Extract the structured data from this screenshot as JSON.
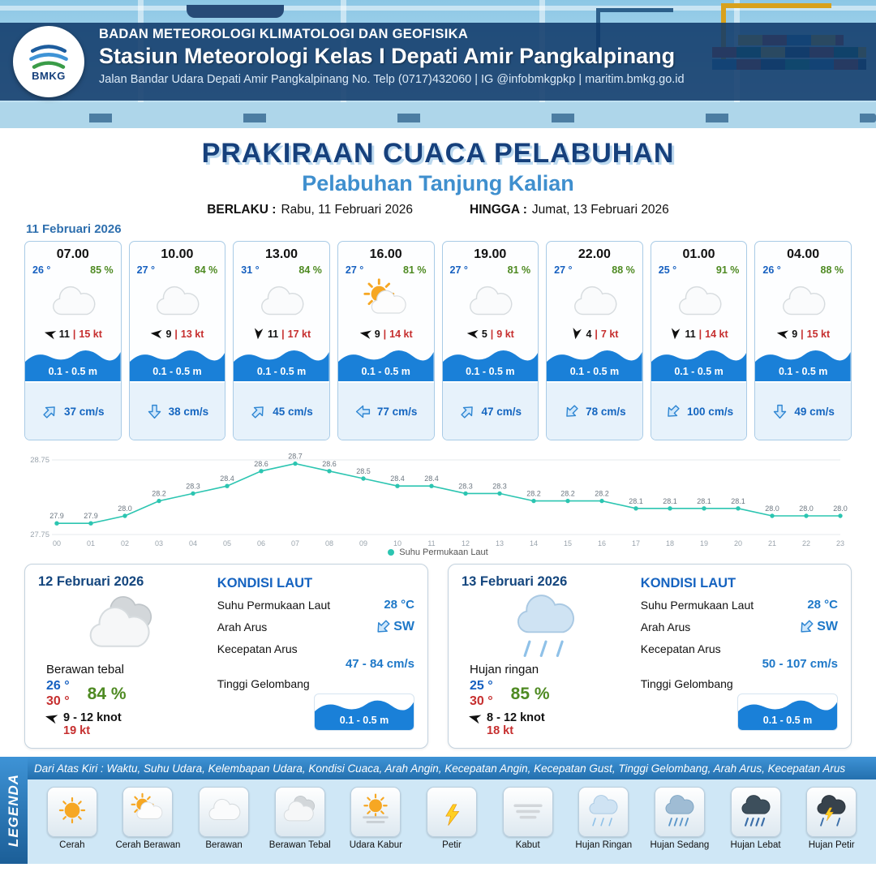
{
  "colors": {
    "navy": "#16407c",
    "sub_blue": "#3f8fce",
    "temp_blue": "#1660c0",
    "humidity_green": "#4e8a22",
    "gust_red": "#c62f2f",
    "wave_blue": "#1a80d8",
    "chart_teal": "#2cc5b1",
    "legend_blue": "#2e7fc0"
  },
  "header": {
    "logo_text": "BMKG",
    "agency": "BADAN METEOROLOGI KLIMATOLOGI DAN GEOFISIKA",
    "station": "Stasiun Meteorologi Kelas I Depati Amir Pangkalpinang",
    "address": "Jalan Bandar Udara Depati Amir Pangkalpinang No. Telp (0717)432060 | IG @infobmkgpkp | maritim.bmkg.go.id"
  },
  "title": {
    "main": "PRAKIRAAN CUACA PELABUHAN",
    "sub": "Pelabuhan Tanjung Kalian",
    "berlaku_label": "BERLAKU :",
    "berlaku_value": "Rabu, 11 Februari 2026",
    "hingga_label": "HINGGA :",
    "hingga_value": "Jumat, 13 Februari 2026"
  },
  "hourly": {
    "date": "11 Februari 2026",
    "cards": [
      {
        "time": "07.00",
        "temp": "26 °",
        "rh": "85 %",
        "icon": "berawan",
        "wind": "11",
        "gust": "15 kt",
        "wind_rot": 195,
        "wave": "0.1 - 0.5 m",
        "current": "37 cm/s",
        "current_rot": -45
      },
      {
        "time": "10.00",
        "temp": "27 °",
        "rh": "84 %",
        "icon": "berawan",
        "wind": "9",
        "gust": "13 kt",
        "wind_rot": 185,
        "wave": "0.1 - 0.5 m",
        "current": "38 cm/s",
        "current_rot": 90
      },
      {
        "time": "13.00",
        "temp": "31 °",
        "rh": "84 %",
        "icon": "berawan",
        "wind": "11",
        "gust": "17 kt",
        "wind_rot": 95,
        "wave": "0.1 - 0.5 m",
        "current": "45 cm/s",
        "current_rot": -45
      },
      {
        "time": "16.00",
        "temp": "27 °",
        "rh": "81 %",
        "icon": "cerah-berawan",
        "wind": "9",
        "gust": "14 kt",
        "wind_rot": 190,
        "wave": "0.1 - 0.5 m",
        "current": "77 cm/s",
        "current_rot": 180
      },
      {
        "time": "19.00",
        "temp": "27 °",
        "rh": "81 %",
        "icon": "berawan",
        "wind": "5",
        "gust": "9 kt",
        "wind_rot": 185,
        "wave": "0.1 - 0.5 m",
        "current": "47 cm/s",
        "current_rot": -45
      },
      {
        "time": "22.00",
        "temp": "27 °",
        "rh": "88 %",
        "icon": "berawan",
        "wind": "4",
        "gust": "7 kt",
        "wind_rot": 100,
        "wave": "0.1 - 0.5 m",
        "current": "78 cm/s",
        "current_rot": 135
      },
      {
        "time": "01.00",
        "temp": "25 °",
        "rh": "91 %",
        "icon": "berawan",
        "wind": "11",
        "gust": "14 kt",
        "wind_rot": 95,
        "wave": "0.1 - 0.5 m",
        "current": "100 cm/s",
        "current_rot": 135
      },
      {
        "time": "04.00",
        "temp": "26 °",
        "rh": "88 %",
        "icon": "berawan",
        "wind": "9",
        "gust": "15 kt",
        "wind_rot": 190,
        "wave": "0.1 - 0.5 m",
        "current": "49 cm/s",
        "current_rot": 90
      }
    ]
  },
  "chart_data": {
    "type": "line",
    "x": [
      "00",
      "01",
      "02",
      "03",
      "04",
      "05",
      "06",
      "07",
      "08",
      "09",
      "10",
      "11",
      "12",
      "13",
      "14",
      "15",
      "16",
      "17",
      "18",
      "19",
      "20",
      "21",
      "22",
      "23"
    ],
    "series": [
      {
        "name": "Suhu Permukaan Laut",
        "values": [
          27.9,
          27.9,
          28.0,
          28.2,
          28.3,
          28.4,
          28.6,
          28.7,
          28.6,
          28.5,
          28.4,
          28.4,
          28.3,
          28.3,
          28.2,
          28.2,
          28.2,
          28.1,
          28.1,
          28.1,
          28.1,
          28.0,
          28.0,
          28.0
        ]
      }
    ],
    "ylim": [
      27.75,
      28.75
    ],
    "yticks": [
      "28.75",
      "27.75"
    ],
    "line_color": "#2cc5b1",
    "legend_position": "bottom",
    "grid": "minimal"
  },
  "sea_labels": {
    "title": "KONDISI LAUT",
    "sst": "Suhu Permukaan Laut",
    "dir": "Arah Arus",
    "speed": "Kecepatan Arus",
    "wave": "Tinggi Gelombang"
  },
  "daily": [
    {
      "date": "12 Februari 2026",
      "icon": "berawan-tebal",
      "condition": "Berawan tebal",
      "temp_min": "26 °",
      "temp_max": "30 °",
      "rh": "84 %",
      "wind": "9 - 12 knot",
      "gust": "19 kt",
      "wind_rot": 195,
      "sst": "28 °C",
      "current_dir": "SW",
      "current_dir_rot": 135,
      "current_speed": "47 - 84 cm/s",
      "wave": "0.1 - 0.5 m"
    },
    {
      "date": "13 Februari 2026",
      "icon": "hujan-ringan",
      "condition": "Hujan ringan",
      "temp_min": "25 °",
      "temp_max": "30 °",
      "rh": "85 %",
      "wind": "8 - 12 knot",
      "gust": "18 kt",
      "wind_rot": 195,
      "sst": "28 °C",
      "current_dir": "SW",
      "current_dir_rot": 135,
      "current_speed": "50 - 107 cm/s",
      "wave": "0.1 - 0.5 m"
    }
  ],
  "legend": {
    "side_label": "LEGENDA",
    "note": "Dari Atas Kiri : Waktu, Suhu Udara, Kelembapan Udara, Kondisi Cuaca, Arah Angin, Kecepatan Angin, Kecepatan Gust, Tinggi Gelombang, Arah Arus, Kecepatan Arus",
    "items": [
      {
        "label": "Cerah",
        "icon": "cerah"
      },
      {
        "label": "Cerah Berawan",
        "icon": "cerah-berawan"
      },
      {
        "label": "Berawan",
        "icon": "berawan"
      },
      {
        "label": "Berawan Tebal",
        "icon": "berawan-tebal"
      },
      {
        "label": "Udara Kabur",
        "icon": "udara-kabur"
      },
      {
        "label": "Petir",
        "icon": "petir"
      },
      {
        "label": "Kabut",
        "icon": "kabut"
      },
      {
        "label": "Hujan Ringan",
        "icon": "hujan-ringan"
      },
      {
        "label": "Hujan Sedang",
        "icon": "hujan-sedang"
      },
      {
        "label": "Hujan Lebat",
        "icon": "hujan-lebat"
      },
      {
        "label": "Hujan Petir",
        "icon": "hujan-petir"
      }
    ]
  }
}
